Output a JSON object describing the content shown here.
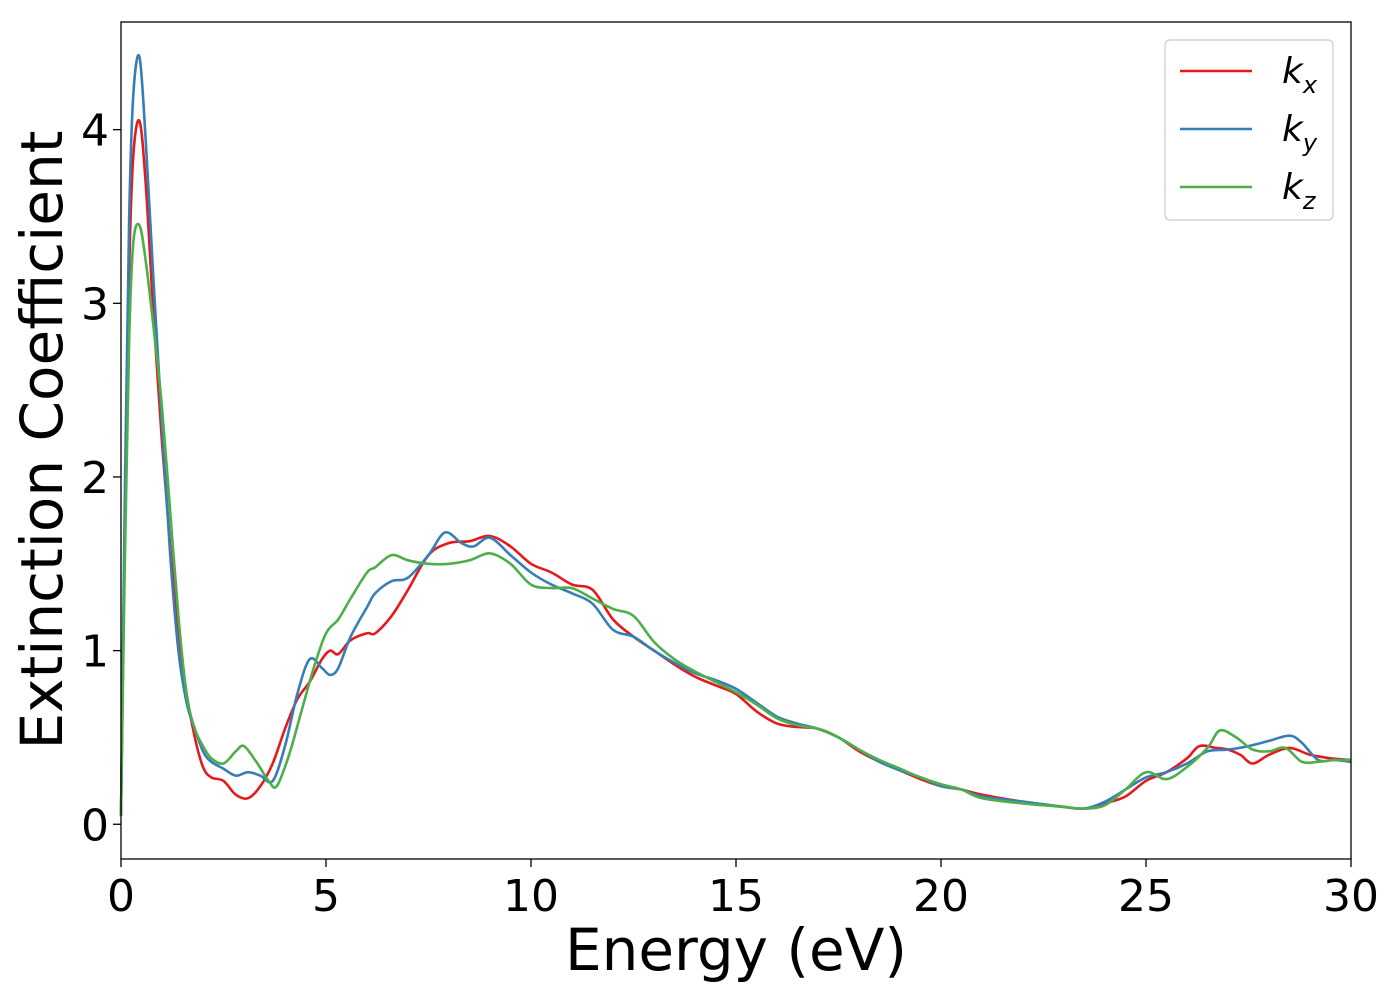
{
  "chart_data": {
    "type": "line",
    "xlabel": "Energy (eV)",
    "ylabel": "Extinction Coefficient",
    "xlim": [
      0,
      30
    ],
    "ylim": [
      -0.2,
      4.62
    ],
    "xticks": [
      0,
      5,
      10,
      15,
      20,
      25,
      30
    ],
    "yticks": [
      0,
      1,
      2,
      3,
      4
    ],
    "grid": false,
    "legend_position": "top-right",
    "series": [
      {
        "name": "k",
        "subscript": "x",
        "color": "#e41a1c",
        "x": [
          0,
          0.1,
          0.2,
          0.3,
          0.45,
          0.6,
          0.8,
          1.0,
          1.2,
          1.4,
          1.6,
          1.8,
          2.0,
          2.2,
          2.5,
          2.8,
          3.1,
          3.4,
          3.7,
          4.0,
          4.3,
          4.6,
          4.9,
          5.1,
          5.3,
          5.6,
          6.0,
          6.2,
          6.6,
          7.0,
          7.5,
          8.0,
          8.5,
          9.0,
          9.5,
          10.0,
          10.5,
          11.0,
          11.5,
          12.0,
          12.5,
          13.0,
          13.5,
          14.0,
          14.5,
          15.0,
          15.5,
          16.0,
          16.5,
          17.0,
          17.5,
          18.0,
          18.5,
          19.0,
          19.5,
          20.0,
          20.5,
          21.0,
          22.0,
          23.0,
          23.5,
          24.0,
          24.5,
          25.0,
          25.5,
          26.0,
          26.3,
          26.7,
          27.0,
          27.3,
          27.6,
          28.0,
          28.5,
          29.0,
          29.5,
          30.0
        ],
        "y": [
          0.05,
          1.8,
          3.2,
          3.85,
          4.05,
          3.7,
          2.9,
          2.2,
          1.6,
          1.1,
          0.75,
          0.5,
          0.33,
          0.27,
          0.25,
          0.17,
          0.15,
          0.22,
          0.35,
          0.55,
          0.72,
          0.82,
          0.95,
          1.0,
          0.98,
          1.06,
          1.1,
          1.1,
          1.2,
          1.35,
          1.55,
          1.62,
          1.63,
          1.66,
          1.6,
          1.5,
          1.45,
          1.38,
          1.35,
          1.18,
          1.08,
          1.0,
          0.92,
          0.85,
          0.8,
          0.75,
          0.65,
          0.58,
          0.56,
          0.55,
          0.5,
          0.42,
          0.36,
          0.31,
          0.26,
          0.22,
          0.2,
          0.17,
          0.13,
          0.1,
          0.09,
          0.12,
          0.16,
          0.25,
          0.3,
          0.38,
          0.45,
          0.44,
          0.43,
          0.4,
          0.35,
          0.4,
          0.44,
          0.4,
          0.38,
          0.37
        ]
      },
      {
        "name": "k",
        "subscript": "y",
        "color": "#377eb8",
        "x": [
          0,
          0.1,
          0.2,
          0.3,
          0.45,
          0.6,
          0.8,
          1.0,
          1.2,
          1.4,
          1.6,
          1.8,
          2.0,
          2.2,
          2.5,
          2.8,
          3.1,
          3.4,
          3.7,
          4.0,
          4.3,
          4.6,
          4.9,
          5.1,
          5.3,
          5.6,
          6.0,
          6.2,
          6.6,
          7.0,
          7.5,
          7.9,
          8.3,
          8.6,
          9.0,
          9.5,
          10.0,
          10.5,
          11.0,
          11.5,
          12.0,
          12.5,
          13.0,
          13.5,
          14.0,
          14.5,
          15.0,
          15.5,
          16.0,
          16.5,
          17.0,
          17.5,
          18.0,
          18.5,
          19.0,
          19.5,
          20.0,
          20.5,
          21.0,
          22.0,
          23.0,
          23.5,
          24.0,
          24.5,
          25.0,
          25.5,
          26.0,
          26.5,
          27.0,
          27.5,
          28.0,
          28.5,
          28.8,
          29.2,
          29.6,
          30.0
        ],
        "y": [
          0.05,
          2.0,
          3.5,
          4.2,
          4.42,
          3.95,
          3.1,
          2.3,
          1.55,
          1.0,
          0.7,
          0.55,
          0.42,
          0.36,
          0.32,
          0.28,
          0.3,
          0.28,
          0.25,
          0.45,
          0.75,
          0.95,
          0.9,
          0.86,
          0.9,
          1.08,
          1.25,
          1.33,
          1.4,
          1.42,
          1.55,
          1.68,
          1.62,
          1.6,
          1.65,
          1.55,
          1.45,
          1.38,
          1.33,
          1.27,
          1.12,
          1.08,
          1.0,
          0.93,
          0.87,
          0.83,
          0.78,
          0.7,
          0.62,
          0.58,
          0.55,
          0.5,
          0.43,
          0.36,
          0.31,
          0.27,
          0.22,
          0.2,
          0.16,
          0.13,
          0.1,
          0.09,
          0.13,
          0.2,
          0.27,
          0.3,
          0.35,
          0.42,
          0.43,
          0.45,
          0.48,
          0.51,
          0.47,
          0.37,
          0.37,
          0.36
        ]
      },
      {
        "name": "k",
        "subscript": "z",
        "color": "#4daf4a",
        "x": [
          0,
          0.1,
          0.2,
          0.3,
          0.45,
          0.6,
          0.8,
          1.0,
          1.2,
          1.4,
          1.6,
          1.8,
          2.0,
          2.2,
          2.5,
          2.8,
          3.0,
          3.3,
          3.6,
          3.8,
          4.1,
          4.4,
          4.7,
          5.0,
          5.3,
          5.6,
          6.0,
          6.2,
          6.6,
          7.0,
          7.5,
          8.0,
          8.5,
          9.0,
          9.5,
          10.0,
          10.5,
          11.0,
          11.5,
          12.0,
          12.5,
          13.0,
          13.5,
          14.0,
          14.5,
          15.0,
          15.5,
          16.0,
          16.5,
          17.0,
          17.5,
          18.0,
          18.5,
          19.0,
          19.5,
          20.0,
          20.5,
          21.0,
          22.0,
          23.0,
          23.5,
          24.0,
          24.5,
          25.0,
          25.5,
          26.0,
          26.5,
          26.8,
          27.2,
          27.6,
          28.0,
          28.4,
          28.8,
          29.2,
          29.6,
          30.0
        ],
        "y": [
          0.05,
          1.6,
          2.8,
          3.35,
          3.45,
          3.25,
          2.85,
          2.4,
          1.8,
          1.2,
          0.75,
          0.55,
          0.45,
          0.38,
          0.35,
          0.42,
          0.45,
          0.36,
          0.25,
          0.22,
          0.4,
          0.65,
          0.9,
          1.1,
          1.18,
          1.3,
          1.45,
          1.48,
          1.55,
          1.52,
          1.5,
          1.5,
          1.52,
          1.56,
          1.5,
          1.38,
          1.36,
          1.36,
          1.3,
          1.24,
          1.2,
          1.05,
          0.95,
          0.88,
          0.82,
          0.76,
          0.69,
          0.61,
          0.57,
          0.55,
          0.5,
          0.43,
          0.37,
          0.32,
          0.27,
          0.23,
          0.2,
          0.15,
          0.12,
          0.1,
          0.09,
          0.11,
          0.2,
          0.3,
          0.26,
          0.33,
          0.44,
          0.54,
          0.5,
          0.43,
          0.42,
          0.44,
          0.36,
          0.36,
          0.37,
          0.37
        ]
      }
    ]
  }
}
